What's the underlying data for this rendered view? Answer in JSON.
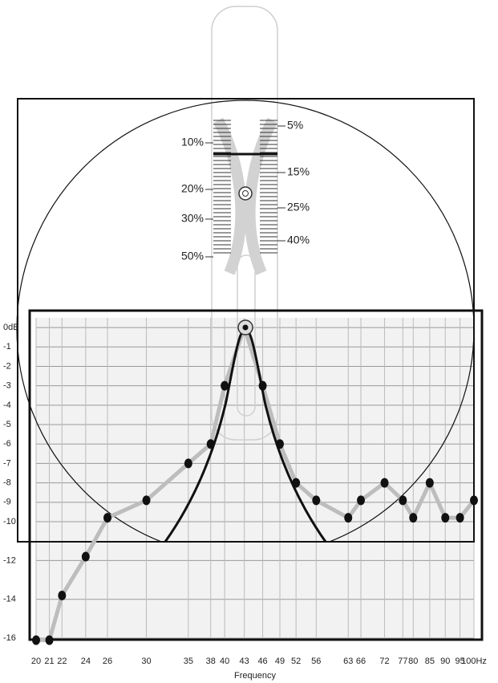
{
  "chart_data": {
    "type": "line",
    "x_label": "Frequency",
    "xscale": "log",
    "x": [
      20,
      21,
      22,
      24,
      26,
      30,
      35,
      38,
      40,
      43,
      46,
      49,
      52,
      56,
      63,
      66,
      72,
      77,
      80,
      85,
      90,
      95,
      100
    ],
    "series": [
      {
        "color": "#bdbdbd",
        "marker_color": "#111111",
        "values": [
          -16.1,
          -16.1,
          -13.8,
          -11.8,
          -9.8,
          -8.9,
          -7,
          -6,
          -3,
          0,
          -3,
          -6,
          -8,
          -8.9,
          -9.8,
          -8.9,
          -8,
          -8.9,
          -9.8,
          -8,
          -9.8,
          -9.8,
          -8.9
        ]
      }
    ],
    "xlim": [
      20,
      100
    ],
    "xticks": [
      20,
      21,
      22,
      24,
      26,
      30,
      35,
      38,
      40,
      43,
      46,
      49,
      52,
      56,
      63,
      66,
      72,
      77,
      80,
      85,
      90,
      95,
      {
        "value": 100,
        "label": "100Hz"
      }
    ],
    "ylim": [
      -16.2,
      0.5
    ],
    "yticks": [
      {
        "value": 0,
        "label": "0dB"
      },
      -1,
      -2,
      -3,
      -4,
      -5,
      -6,
      -7,
      -8,
      -9,
      -10,
      -12,
      -14,
      -16
    ],
    "grid": true
  },
  "dial": {
    "left_labels": [
      "10%",
      "20%",
      "30%",
      "50%"
    ],
    "right_labels": [
      "5%",
      "15%",
      "25%",
      "40%"
    ]
  }
}
